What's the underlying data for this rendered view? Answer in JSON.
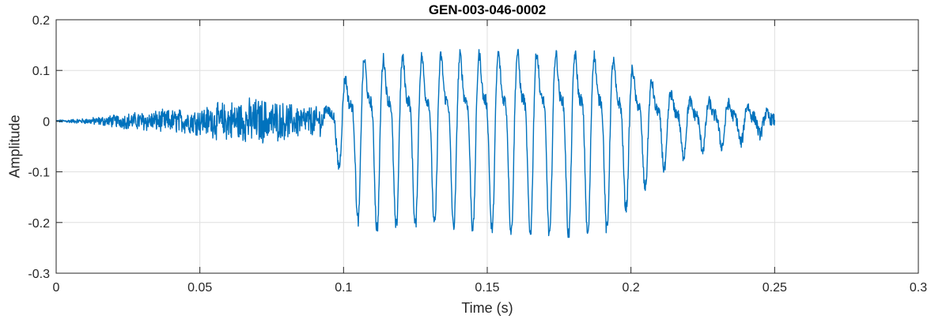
{
  "chart_data": {
    "type": "line",
    "title": "GEN-003-046-0002",
    "xlabel": "Time (s)",
    "ylabel": "Amplitude",
    "xlim": [
      0,
      0.3
    ],
    "ylim": [
      -0.3,
      0.2
    ],
    "xticks": [
      0,
      0.05,
      0.1,
      0.15,
      0.2,
      0.25,
      0.3
    ],
    "xtick_labels": [
      "0",
      "0.05",
      "0.1",
      "0.15",
      "0.2",
      "0.25",
      "0.3"
    ],
    "yticks": [
      -0.3,
      -0.2,
      -0.1,
      0,
      0.1,
      0.2
    ],
    "ytick_labels": [
      "-0.3",
      "-0.2",
      "-0.1",
      "0",
      "0.1",
      "0.2"
    ],
    "grid": true,
    "series": [
      {
        "color": "#0072bd",
        "signal_end": 0.25,
        "sample_rate": 8000,
        "envelope": {
          "t": [
            0,
            0.01,
            0.03,
            0.05,
            0.06,
            0.07,
            0.08,
            0.093,
            0.097,
            0.1,
            0.106,
            0.13,
            0.17,
            0.19,
            0.203,
            0.21,
            0.22,
            0.24,
            0.25
          ],
          "pos": [
            0.002,
            0.005,
            0.018,
            0.025,
            0.035,
            0.04,
            0.032,
            0.025,
            0.06,
            0.1,
            0.15,
            0.16,
            0.17,
            0.16,
            0.12,
            0.08,
            0.05,
            0.04,
            0.01
          ],
          "neg": [
            0.002,
            0.005,
            0.018,
            0.025,
            0.04,
            0.045,
            0.035,
            0.025,
            0.07,
            0.11,
            0.21,
            0.2,
            0.22,
            0.22,
            0.14,
            0.1,
            0.06,
            0.04,
            0.01
          ]
        },
        "pitch_hz": 150
      }
    ]
  }
}
